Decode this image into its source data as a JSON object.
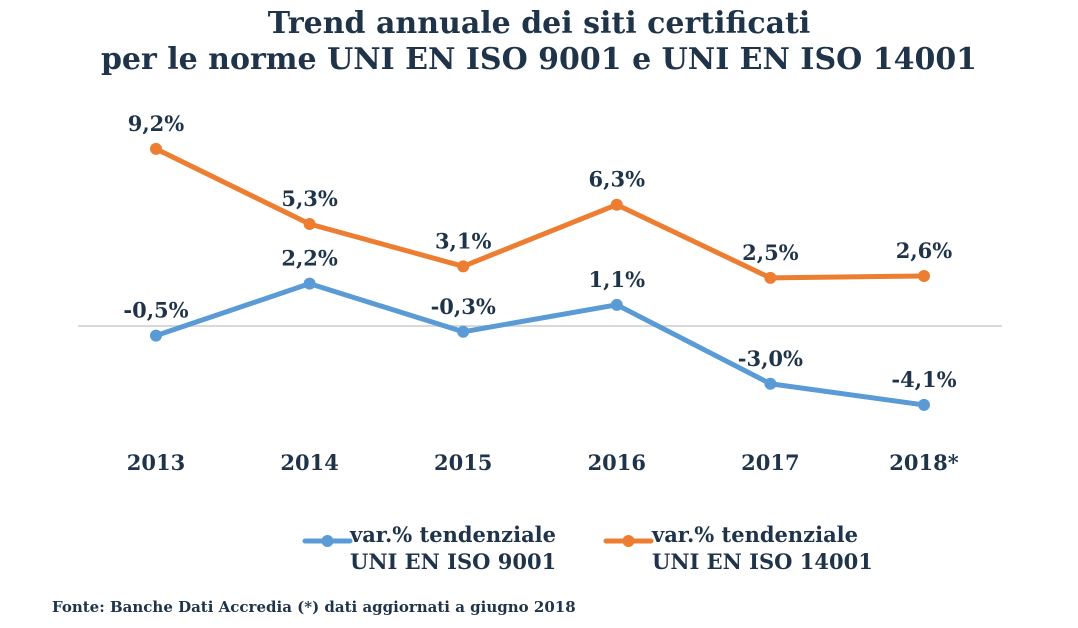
{
  "chart_data": {
    "type": "line",
    "title": "Trend annuale dei siti certificati",
    "subtitle": "per le norme UNI EN ISO 9001 e UNI EN ISO 14001",
    "categories": [
      "2013",
      "2014",
      "2015",
      "2016",
      "2017",
      "2018*"
    ],
    "series": [
      {
        "name": "var.% tendenziale UNI EN ISO 9001",
        "legend_line1": "var.% tendenziale",
        "legend_line2": "UNI EN ISO 9001",
        "values": [
          -0.5,
          2.2,
          -0.3,
          1.1,
          -3.0,
          -4.1
        ],
        "labels": [
          "-0,5%",
          "2,2%",
          "-0,3%",
          "1,1%",
          "-3,0%",
          "-4,1%"
        ],
        "color": "#5b9bd5"
      },
      {
        "name": "var.% tendenziale UNI EN ISO 14001",
        "legend_line1": "var.% tendenziale",
        "legend_line2": "UNI EN ISO 14001",
        "values": [
          9.2,
          5.3,
          3.1,
          6.3,
          2.5,
          2.6
        ],
        "labels": [
          "9,2%",
          "5,3%",
          "3,1%",
          "6,3%",
          "2,5%",
          "2,6%"
        ],
        "color": "#ed7d31"
      }
    ],
    "ylim": [
      -6.0,
      10.0
    ],
    "zero_line": true,
    "grid": false,
    "legend": "bottom",
    "zero_line_color": "#d9d9d9",
    "text_color": "#1f3349"
  },
  "footer": "Fonte: Banche Dati Accredia (*) dati aggiornati a giugno 2018"
}
